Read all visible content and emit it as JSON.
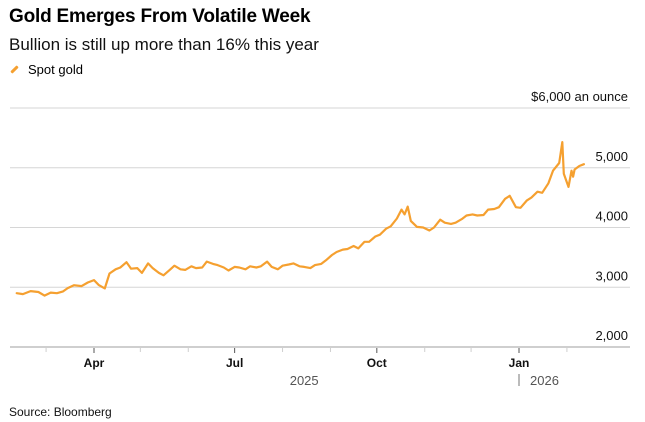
{
  "header": {
    "title": "Gold Emerges From Volatile Week",
    "subtitle": "Bullion is still up more than 16% this year"
  },
  "legend": {
    "label": "Spot gold",
    "color": "#f5a030"
  },
  "footer": {
    "source": "Source: Bloomberg"
  },
  "chart_data": {
    "type": "line",
    "title": "Gold Emerges From Volatile Week",
    "subtitle": "Bullion is still up more than 16% this year",
    "xlabel": "",
    "ylabel": "$ an ounce",
    "ylim": [
      2000,
      6000
    ],
    "yticks": [
      2000,
      3000,
      4000,
      5000,
      6000
    ],
    "ytick_labels": [
      "2,000",
      "3,000",
      "4,000",
      "5,000",
      "$6,000 an ounce"
    ],
    "x_range": [
      "2025-01-31",
      "2026-02-28"
    ],
    "xticks_major": [
      {
        "date": "2025-04-01",
        "label": "Apr"
      },
      {
        "date": "2025-07-01",
        "label": "Jul"
      },
      {
        "date": "2025-10-01",
        "label": "Oct"
      },
      {
        "date": "2026-01-01",
        "label": "Jan"
      }
    ],
    "xticks_minor": [
      "2025-03-01",
      "2025-05-01",
      "2025-06-01",
      "2025-08-01",
      "2025-09-01",
      "2025-11-01",
      "2025-12-01",
      "2026-02-01"
    ],
    "year_labels": [
      {
        "date": "2025-08-15",
        "label": "2025"
      },
      {
        "date": "2026-01-01",
        "label": "2026",
        "divider": true
      }
    ],
    "grid": true,
    "legend_position": "top-left",
    "series": [
      {
        "name": "Spot gold",
        "color": "#f5a030",
        "points": [
          [
            "2025-02-10",
            2900
          ],
          [
            "2025-02-14",
            2885
          ],
          [
            "2025-02-19",
            2935
          ],
          [
            "2025-02-24",
            2920
          ],
          [
            "2025-02-28",
            2860
          ],
          [
            "2025-03-04",
            2910
          ],
          [
            "2025-03-08",
            2900
          ],
          [
            "2025-03-12",
            2930
          ],
          [
            "2025-03-15",
            2985
          ],
          [
            "2025-03-19",
            3035
          ],
          [
            "2025-03-24",
            3020
          ],
          [
            "2025-03-28",
            3080
          ],
          [
            "2025-04-01",
            3120
          ],
          [
            "2025-04-04",
            3040
          ],
          [
            "2025-04-08",
            2980
          ],
          [
            "2025-04-11",
            3230
          ],
          [
            "2025-04-15",
            3300
          ],
          [
            "2025-04-18",
            3330
          ],
          [
            "2025-04-22",
            3420
          ],
          [
            "2025-04-25",
            3310
          ],
          [
            "2025-04-29",
            3320
          ],
          [
            "2025-05-02",
            3240
          ],
          [
            "2025-05-06",
            3400
          ],
          [
            "2025-05-09",
            3320
          ],
          [
            "2025-05-13",
            3240
          ],
          [
            "2025-05-16",
            3200
          ],
          [
            "2025-05-20",
            3290
          ],
          [
            "2025-05-23",
            3360
          ],
          [
            "2025-05-27",
            3300
          ],
          [
            "2025-05-30",
            3290
          ],
          [
            "2025-06-03",
            3350
          ],
          [
            "2025-06-06",
            3320
          ],
          [
            "2025-06-10",
            3330
          ],
          [
            "2025-06-13",
            3430
          ],
          [
            "2025-06-17",
            3390
          ],
          [
            "2025-06-20",
            3370
          ],
          [
            "2025-06-24",
            3330
          ],
          [
            "2025-06-27",
            3280
          ],
          [
            "2025-07-01",
            3340
          ],
          [
            "2025-07-04",
            3330
          ],
          [
            "2025-07-08",
            3300
          ],
          [
            "2025-07-11",
            3350
          ],
          [
            "2025-07-15",
            3330
          ],
          [
            "2025-07-18",
            3350
          ],
          [
            "2025-07-22",
            3430
          ],
          [
            "2025-07-25",
            3340
          ],
          [
            "2025-07-29",
            3300
          ],
          [
            "2025-08-01",
            3360
          ],
          [
            "2025-08-05",
            3380
          ],
          [
            "2025-08-08",
            3400
          ],
          [
            "2025-08-12",
            3350
          ],
          [
            "2025-08-15",
            3340
          ],
          [
            "2025-08-19",
            3320
          ],
          [
            "2025-08-22",
            3370
          ],
          [
            "2025-08-26",
            3390
          ],
          [
            "2025-08-29",
            3450
          ],
          [
            "2025-09-02",
            3540
          ],
          [
            "2025-09-05",
            3590
          ],
          [
            "2025-09-09",
            3630
          ],
          [
            "2025-09-12",
            3640
          ],
          [
            "2025-09-16",
            3690
          ],
          [
            "2025-09-19",
            3650
          ],
          [
            "2025-09-23",
            3760
          ],
          [
            "2025-09-26",
            3760
          ],
          [
            "2025-09-30",
            3850
          ],
          [
            "2025-10-03",
            3880
          ],
          [
            "2025-10-07",
            3980
          ],
          [
            "2025-10-10",
            4020
          ],
          [
            "2025-10-14",
            4150
          ],
          [
            "2025-10-17",
            4300
          ],
          [
            "2025-10-19",
            4220
          ],
          [
            "2025-10-21",
            4350
          ],
          [
            "2025-10-23",
            4110
          ],
          [
            "2025-10-27",
            4010
          ],
          [
            "2025-10-31",
            4000
          ],
          [
            "2025-11-04",
            3950
          ],
          [
            "2025-11-07",
            4000
          ],
          [
            "2025-11-11",
            4130
          ],
          [
            "2025-11-14",
            4080
          ],
          [
            "2025-11-18",
            4060
          ],
          [
            "2025-11-21",
            4080
          ],
          [
            "2025-11-25",
            4140
          ],
          [
            "2025-11-28",
            4200
          ],
          [
            "2025-12-02",
            4220
          ],
          [
            "2025-12-05",
            4200
          ],
          [
            "2025-12-09",
            4210
          ],
          [
            "2025-12-12",
            4300
          ],
          [
            "2025-12-16",
            4310
          ],
          [
            "2025-12-19",
            4340
          ],
          [
            "2025-12-23",
            4480
          ],
          [
            "2025-12-26",
            4530
          ],
          [
            "2025-12-30",
            4340
          ],
          [
            "2026-01-02",
            4330
          ],
          [
            "2026-01-06",
            4450
          ],
          [
            "2026-01-09",
            4500
          ],
          [
            "2026-01-13",
            4600
          ],
          [
            "2026-01-16",
            4580
          ],
          [
            "2026-01-20",
            4740
          ],
          [
            "2026-01-23",
            4950
          ],
          [
            "2026-01-27",
            5080
          ],
          [
            "2026-01-29",
            5430
          ],
          [
            "2026-01-30",
            4900
          ],
          [
            "2026-02-02",
            4680
          ],
          [
            "2026-02-04",
            4950
          ],
          [
            "2026-02-05",
            4850
          ],
          [
            "2026-02-06",
            4970
          ],
          [
            "2026-02-09",
            5030
          ],
          [
            "2026-02-12",
            5060
          ]
        ]
      }
    ]
  }
}
